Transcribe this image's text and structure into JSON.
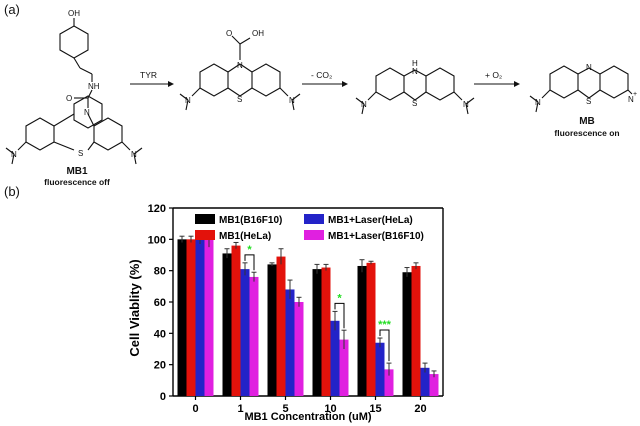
{
  "panel_a": {
    "label": "(a)",
    "arrows": [
      {
        "label": "TYR"
      },
      {
        "label": "- CO₂"
      },
      {
        "label": "+ O₂"
      }
    ],
    "molecules": [
      {
        "name": "MB1",
        "subtitle": "fluorescence off"
      },
      {
        "name": "",
        "subtitle": ""
      },
      {
        "name": "",
        "subtitle": ""
      },
      {
        "name": "MB",
        "subtitle": "fluorescence on"
      }
    ],
    "atoms": {
      "oh": "OH",
      "nh": "NH",
      "o": "O",
      "n": "N",
      "s": "S",
      "h": "H",
      "cooh": "OH",
      "nplus": "N",
      "plus": "+"
    }
  },
  "panel_b": {
    "label": "(b)"
  },
  "chart_data": {
    "type": "bar",
    "xlabel": "MB1 Concentration (uM)",
    "ylabel": "Cell Viablity (%)",
    "ylim": [
      0,
      120
    ],
    "yticks": [
      0,
      20,
      40,
      60,
      80,
      100,
      120
    ],
    "categories": [
      "0",
      "1",
      "5",
      "10",
      "15",
      "20"
    ],
    "legend_position": "top",
    "series": [
      {
        "name": "MB1(B16F10)",
        "color": "#000000",
        "values": [
          100,
          91,
          84,
          81,
          83,
          79
        ],
        "errors": [
          2,
          3,
          1,
          3,
          4,
          3
        ]
      },
      {
        "name": "MB1(HeLa)",
        "color": "#e3120b",
        "values": [
          100,
          96,
          89,
          82,
          85,
          83
        ],
        "errors": [
          2,
          2,
          5,
          2,
          1,
          2
        ]
      },
      {
        "name": "MB1+Laser(HeLa)",
        "color": "#2323c8",
        "values": [
          100,
          81,
          68,
          48,
          34,
          18
        ],
        "errors": [
          3,
          4,
          6,
          6,
          3,
          3
        ]
      },
      {
        "name": "MB1+Laser(B16F10)",
        "color": "#e020e0",
        "values": [
          100,
          76,
          60,
          36,
          17,
          14
        ],
        "errors": [
          5,
          3,
          3,
          6,
          4,
          2
        ]
      }
    ],
    "significance": [
      {
        "category": "1",
        "text": "*"
      },
      {
        "category": "10",
        "text": "*"
      },
      {
        "category": "15",
        "text": "***"
      }
    ],
    "significance_color": "#22dd22"
  }
}
